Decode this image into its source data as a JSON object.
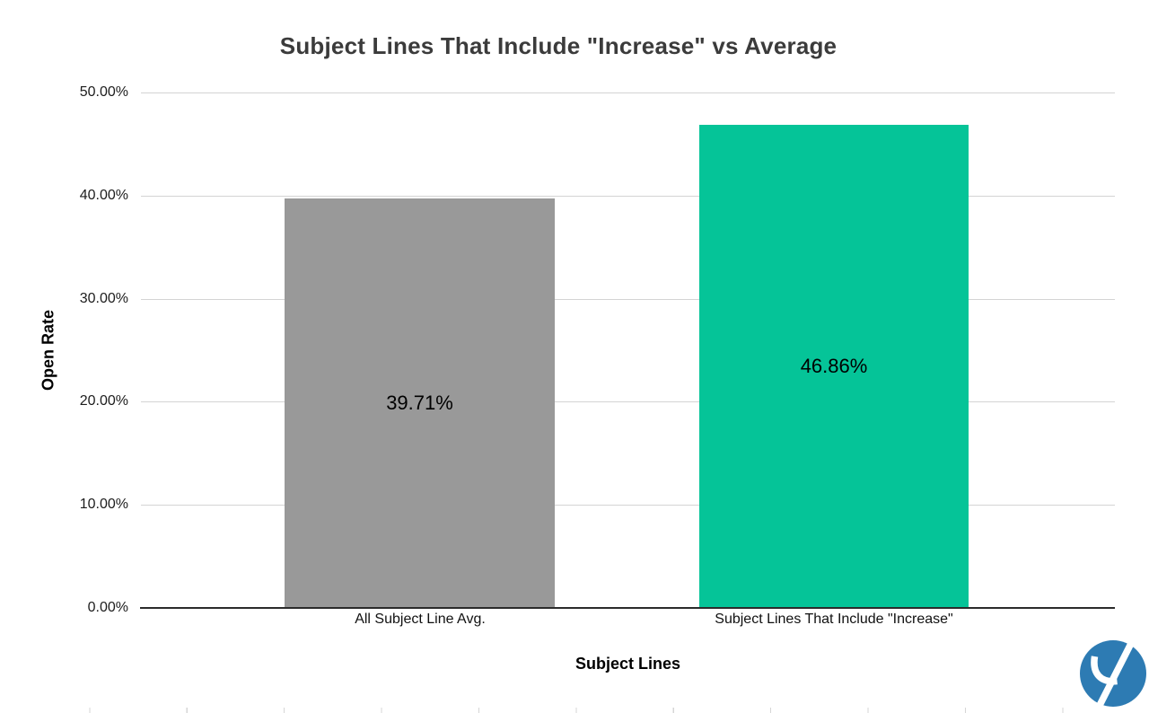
{
  "chart_data": {
    "type": "bar",
    "title": "Subject Lines That Include \"Increase\" vs Average",
    "categories": [
      "All Subject Line Avg.",
      "Subject Lines That Include \"Increase\""
    ],
    "series": [
      {
        "name": "Open Rate",
        "values": [
          39.71,
          46.86
        ]
      }
    ],
    "value_labels": [
      "39.71%",
      "46.86%"
    ],
    "bar_colors": [
      "#999999",
      "#05C498"
    ],
    "xlabel": "Subject Lines",
    "ylabel": "Open Rate",
    "ylim": [
      0,
      50
    ],
    "yticks": [
      "0.00%",
      "10.00%",
      "20.00%",
      "30.00%",
      "40.00%",
      "50.00%"
    ],
    "grid": true,
    "legend": "none",
    "gridline_color": "#d4d4d4",
    "baseline_color": "#2b2b2b",
    "title_color": "#3b3b3b"
  },
  "branding": {
    "logo_icon": "y-in-circle",
    "logo_color": "#2D7BB3"
  }
}
